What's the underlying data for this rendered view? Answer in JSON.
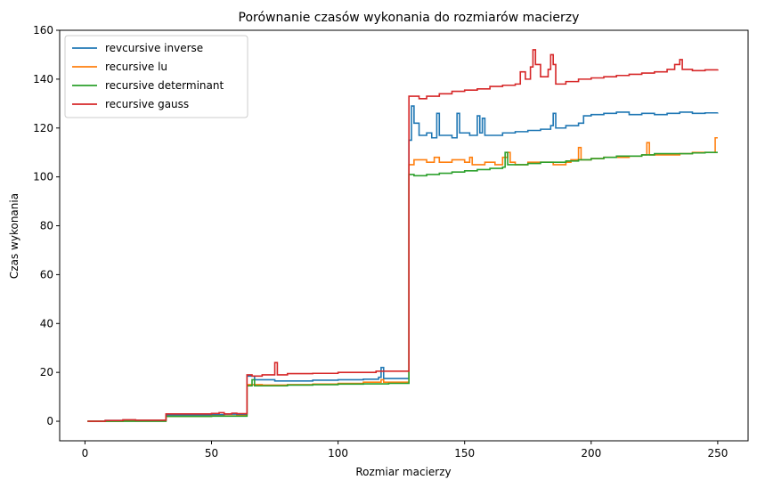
{
  "chart_data": {
    "type": "line",
    "step": true,
    "title": "Porównanie czasów wykonania do rozmiarów macierzy",
    "xlabel": "Rozmiar macierzy",
    "ylabel": "Czas wykonania",
    "xlim": [
      -10,
      262
    ],
    "ylim": [
      -8,
      160
    ],
    "xticks": [
      0,
      50,
      100,
      150,
      200,
      250
    ],
    "yticks": [
      0,
      20,
      40,
      60,
      80,
      100,
      120,
      140,
      160
    ],
    "legend_position": "top-left",
    "series": [
      {
        "name": "revcursive inverse",
        "color": "#1f77b4",
        "points": [
          [
            1,
            0
          ],
          [
            8,
            0.3
          ],
          [
            15,
            0.5
          ],
          [
            20,
            0.4
          ],
          [
            32,
            2.5
          ],
          [
            50,
            2.7
          ],
          [
            55,
            2.9
          ],
          [
            60,
            2.8
          ],
          [
            64,
            18.5
          ],
          [
            67,
            17
          ],
          [
            75,
            16.5
          ],
          [
            90,
            16.8
          ],
          [
            100,
            17
          ],
          [
            110,
            17.2
          ],
          [
            116,
            18
          ],
          [
            117,
            22
          ],
          [
            118,
            17.5
          ],
          [
            125,
            17.5
          ],
          [
            128,
            115
          ],
          [
            129,
            129
          ],
          [
            130,
            122
          ],
          [
            132,
            117
          ],
          [
            135,
            118
          ],
          [
            137,
            116
          ],
          [
            139,
            126
          ],
          [
            140,
            117
          ],
          [
            145,
            116
          ],
          [
            147,
            126
          ],
          [
            148,
            118
          ],
          [
            152,
            117
          ],
          [
            155,
            125
          ],
          [
            156,
            118
          ],
          [
            157,
            124
          ],
          [
            158,
            117
          ],
          [
            165,
            118
          ],
          [
            170,
            118.5
          ],
          [
            175,
            119
          ],
          [
            180,
            119.5
          ],
          [
            184,
            121
          ],
          [
            185,
            126
          ],
          [
            186,
            120
          ],
          [
            190,
            121
          ],
          [
            195,
            122
          ],
          [
            197,
            125
          ],
          [
            200,
            125.5
          ],
          [
            205,
            126
          ],
          [
            210,
            126.5
          ],
          [
            215,
            125.5
          ],
          [
            220,
            126
          ],
          [
            225,
            125.5
          ],
          [
            230,
            126
          ],
          [
            235,
            126.5
          ],
          [
            240,
            126
          ],
          [
            245,
            126.2
          ],
          [
            250,
            126.3
          ]
        ]
      },
      {
        "name": "recursive lu",
        "color": "#ff7f0e",
        "points": [
          [
            1,
            0
          ],
          [
            15,
            0.3
          ],
          [
            32,
            2
          ],
          [
            50,
            2.2
          ],
          [
            60,
            2.3
          ],
          [
            64,
            15
          ],
          [
            70,
            14.8
          ],
          [
            80,
            15
          ],
          [
            90,
            15.2
          ],
          [
            100,
            15.5
          ],
          [
            110,
            16
          ],
          [
            117,
            17
          ],
          [
            118,
            16
          ],
          [
            125,
            16
          ],
          [
            128,
            105
          ],
          [
            130,
            107
          ],
          [
            135,
            106
          ],
          [
            138,
            108
          ],
          [
            140,
            106
          ],
          [
            145,
            107
          ],
          [
            150,
            106
          ],
          [
            152,
            108
          ],
          [
            153,
            105
          ],
          [
            158,
            106
          ],
          [
            162,
            105
          ],
          [
            165,
            108
          ],
          [
            167,
            110
          ],
          [
            168,
            106
          ],
          [
            170,
            105
          ],
          [
            175,
            106
          ],
          [
            180,
            106
          ],
          [
            185,
            105
          ],
          [
            190,
            106
          ],
          [
            192,
            107
          ],
          [
            195,
            112
          ],
          [
            196,
            107
          ],
          [
            200,
            107.5
          ],
          [
            205,
            108
          ],
          [
            210,
            108
          ],
          [
            215,
            108.5
          ],
          [
            220,
            109
          ],
          [
            222,
            114
          ],
          [
            223,
            109
          ],
          [
            230,
            109
          ],
          [
            235,
            109.5
          ],
          [
            240,
            110
          ],
          [
            245,
            110
          ],
          [
            248,
            110
          ],
          [
            249,
            116
          ],
          [
            250,
            116
          ]
        ]
      },
      {
        "name": "recursive determinant",
        "color": "#2ca02c",
        "points": [
          [
            1,
            0
          ],
          [
            32,
            2
          ],
          [
            50,
            2.1
          ],
          [
            64,
            14.5
          ],
          [
            66,
            17
          ],
          [
            67,
            14.5
          ],
          [
            70,
            14.5
          ],
          [
            80,
            14.8
          ],
          [
            90,
            15
          ],
          [
            100,
            15.2
          ],
          [
            110,
            15.3
          ],
          [
            120,
            15.5
          ],
          [
            125,
            15.5
          ],
          [
            128,
            101
          ],
          [
            130,
            100.5
          ],
          [
            135,
            101
          ],
          [
            140,
            101.5
          ],
          [
            145,
            102
          ],
          [
            150,
            102.5
          ],
          [
            155,
            103
          ],
          [
            160,
            103.5
          ],
          [
            165,
            104
          ],
          [
            166,
            110
          ],
          [
            167,
            105
          ],
          [
            170,
            105
          ],
          [
            175,
            105.5
          ],
          [
            180,
            106
          ],
          [
            185,
            106
          ],
          [
            190,
            106.5
          ],
          [
            195,
            107
          ],
          [
            200,
            107.5
          ],
          [
            205,
            108
          ],
          [
            210,
            108.5
          ],
          [
            215,
            108.5
          ],
          [
            220,
            109
          ],
          [
            225,
            109.5
          ],
          [
            230,
            109.5
          ],
          [
            235,
            109.5
          ],
          [
            240,
            109.8
          ],
          [
            245,
            110
          ],
          [
            250,
            110
          ]
        ]
      },
      {
        "name": "recursive gauss",
        "color": "#d62728",
        "points": [
          [
            1,
            0
          ],
          [
            8,
            0.3
          ],
          [
            15,
            0.6
          ],
          [
            20,
            0.4
          ],
          [
            32,
            3
          ],
          [
            40,
            3
          ],
          [
            50,
            3.2
          ],
          [
            53,
            3.5
          ],
          [
            55,
            3
          ],
          [
            58,
            3.3
          ],
          [
            60,
            3.1
          ],
          [
            64,
            19
          ],
          [
            66,
            18.5
          ],
          [
            70,
            19
          ],
          [
            75,
            24
          ],
          [
            76,
            19
          ],
          [
            80,
            19.5
          ],
          [
            90,
            19.6
          ],
          [
            100,
            20
          ],
          [
            110,
            20
          ],
          [
            115,
            20.5
          ],
          [
            120,
            20.5
          ],
          [
            125,
            20.5
          ],
          [
            128,
            133
          ],
          [
            132,
            132
          ],
          [
            135,
            133
          ],
          [
            140,
            134
          ],
          [
            145,
            135
          ],
          [
            150,
            135.5
          ],
          [
            155,
            136
          ],
          [
            160,
            137
          ],
          [
            165,
            137.5
          ],
          [
            170,
            138
          ],
          [
            172,
            143
          ],
          [
            174,
            140
          ],
          [
            176,
            145
          ],
          [
            177,
            152
          ],
          [
            178,
            146
          ],
          [
            180,
            141
          ],
          [
            183,
            144
          ],
          [
            184,
            150
          ],
          [
            185,
            146
          ],
          [
            186,
            138
          ],
          [
            190,
            139
          ],
          [
            195,
            140
          ],
          [
            200,
            140.5
          ],
          [
            205,
            141
          ],
          [
            210,
            141.5
          ],
          [
            215,
            142
          ],
          [
            220,
            142.5
          ],
          [
            225,
            143
          ],
          [
            230,
            144
          ],
          [
            233,
            146
          ],
          [
            235,
            148
          ],
          [
            236,
            144
          ],
          [
            240,
            143.5
          ],
          [
            245,
            143.8
          ],
          [
            250,
            144
          ]
        ]
      }
    ]
  }
}
